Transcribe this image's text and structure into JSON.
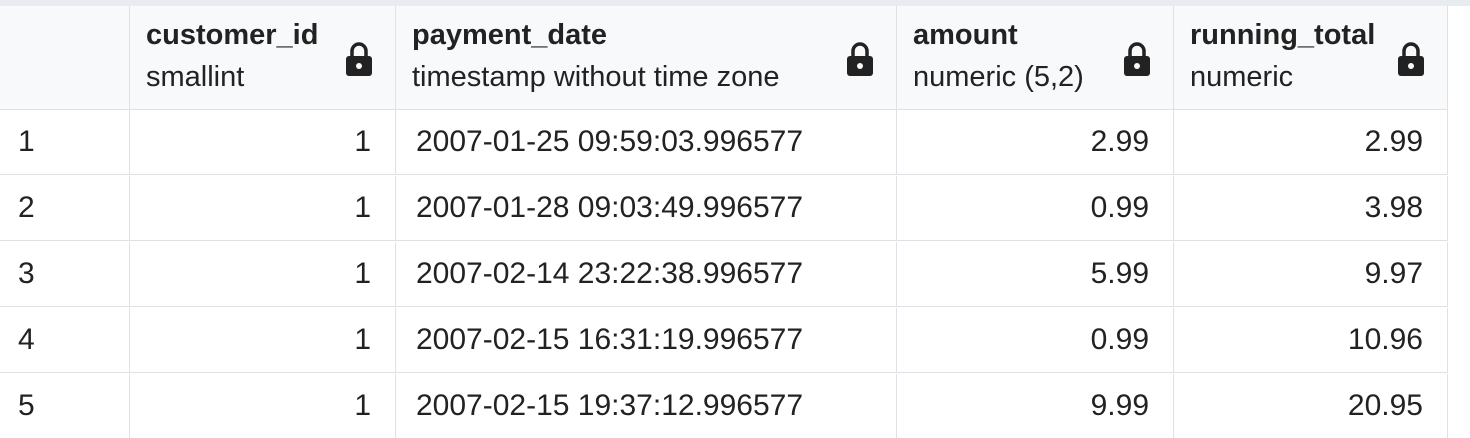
{
  "columns": [
    {
      "name": "customer_id",
      "type": "smallint"
    },
    {
      "name": "payment_date",
      "type": "timestamp without time zone"
    },
    {
      "name": "amount",
      "type": "numeric (5,2)"
    },
    {
      "name": "running_total",
      "type": "numeric"
    }
  ],
  "rows": [
    {
      "num": "1",
      "customer_id": "1",
      "payment_date": "2007-01-25 09:59:03.996577",
      "amount": "2.99",
      "running_total": "2.99"
    },
    {
      "num": "2",
      "customer_id": "1",
      "payment_date": "2007-01-28 09:03:49.996577",
      "amount": "0.99",
      "running_total": "3.98"
    },
    {
      "num": "3",
      "customer_id": "1",
      "payment_date": "2007-02-14 23:22:38.996577",
      "amount": "5.99",
      "running_total": "9.97"
    },
    {
      "num": "4",
      "customer_id": "1",
      "payment_date": "2007-02-15 16:31:19.996577",
      "amount": "0.99",
      "running_total": "10.96"
    },
    {
      "num": "5",
      "customer_id": "1",
      "payment_date": "2007-02-15 19:37:12.996577",
      "amount": "9.99",
      "running_total": "20.95"
    }
  ],
  "icons": {
    "column_lock": "lock-icon"
  }
}
